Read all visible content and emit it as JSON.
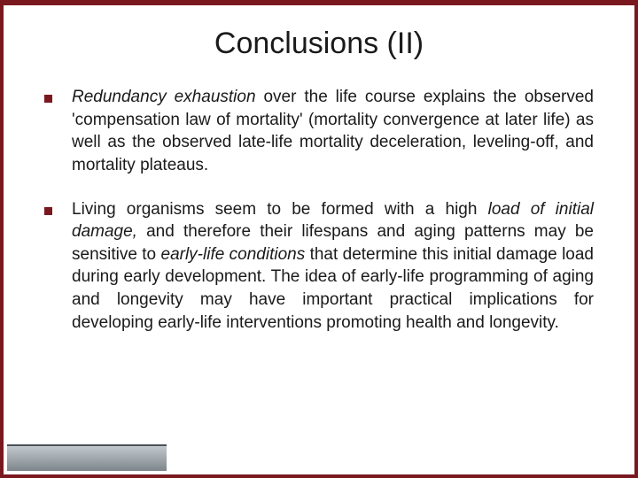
{
  "title": "Conclusions (II)",
  "colors": {
    "frame": "#7a1820",
    "bullet": "#7a1820",
    "text": "#1a1a1a",
    "background": "#ffffff",
    "bottom_bar_top": "#c7cdd1",
    "bottom_bar_bottom": "#7d868c"
  },
  "typography": {
    "title_fontsize": 34,
    "body_fontsize": 19,
    "font_family": "Verdana"
  },
  "bullets": [
    {
      "runs": [
        {
          "text": "Redundancy exhaustion",
          "italic": true
        },
        {
          "text": " over the life course explains the observed 'compensation law of mortality' (mortality convergence at later life) as well as the observed late-life mortality deceleration, leveling-off, and mortality plateaus.",
          "italic": false
        }
      ]
    },
    {
      "runs": [
        {
          "text": "Living organisms seem to be formed with a high ",
          "italic": false
        },
        {
          "text": "load of initial damage,",
          "italic": true
        },
        {
          "text": " and therefore their lifespans and aging patterns may be sensitive to ",
          "italic": false
        },
        {
          "text": "early-life conditions",
          "italic": true
        },
        {
          "text": " that determine this initial damage load during early development. The idea of early-life programming of aging and longevity may have important practical implications for developing early-life interventions promoting health and longevity.",
          "italic": false
        }
      ]
    }
  ]
}
